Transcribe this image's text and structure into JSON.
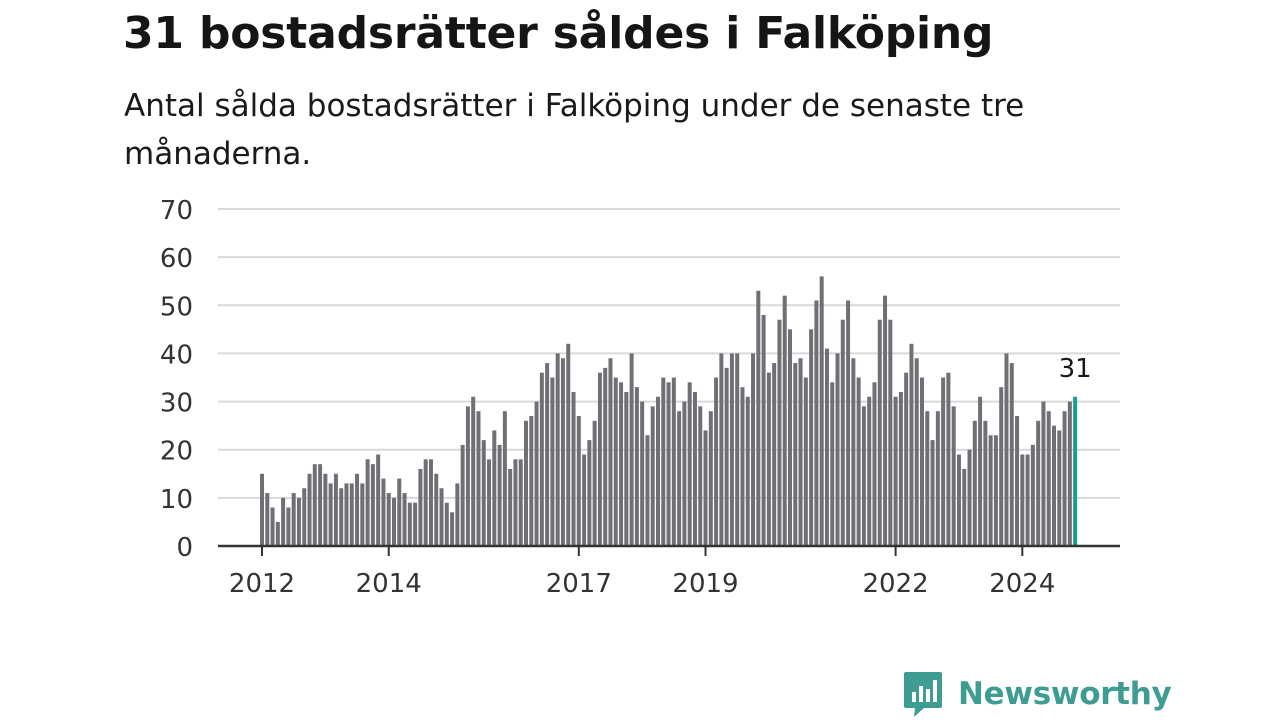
{
  "header": {
    "title": "31 bostadsrätter såldes i Falköping",
    "subtitle": "Antal sålda bostadsrätter i Falköping under de senaste tre månaderna."
  },
  "brand": {
    "name": "Newsworthy",
    "color": "#3e9c92"
  },
  "colors": {
    "bar": "#6f6f75",
    "highlight": "#1a9e96",
    "grid": "#d9d9d9",
    "axis": "#333333"
  },
  "chart_data": {
    "type": "bar",
    "x_ticks": [
      "2012",
      "2014",
      "2017",
      "2019",
      "2022",
      "2024"
    ],
    "y_ticks": [
      0,
      10,
      20,
      30,
      40,
      50,
      60,
      70
    ],
    "ylim": [
      0,
      70
    ],
    "grid": true,
    "highlight_label": "31",
    "values": [
      15,
      11,
      8,
      5,
      10,
      8,
      11,
      10,
      12,
      15,
      17,
      17,
      15,
      13,
      15,
      12,
      13,
      13,
      15,
      13,
      18,
      17,
      19,
      14,
      11,
      10,
      14,
      11,
      9,
      9,
      16,
      18,
      18,
      15,
      12,
      9,
      7,
      13,
      21,
      29,
      31,
      28,
      22,
      18,
      24,
      21,
      28,
      16,
      18,
      18,
      26,
      27,
      30,
      36,
      38,
      35,
      40,
      39,
      42,
      32,
      27,
      19,
      22,
      26,
      36,
      37,
      39,
      35,
      34,
      32,
      40,
      33,
      30,
      23,
      29,
      31,
      35,
      34,
      35,
      28,
      30,
      34,
      32,
      29,
      24,
      28,
      35,
      40,
      37,
      40,
      40,
      33,
      31,
      40,
      53,
      48,
      36,
      38,
      47,
      52,
      45,
      38,
      39,
      35,
      45,
      51,
      56,
      41,
      34,
      40,
      47,
      51,
      39,
      35,
      29,
      31,
      34,
      47,
      52,
      47,
      31,
      32,
      36,
      42,
      39,
      35,
      28,
      22,
      28,
      35,
      36,
      29,
      19,
      16,
      20,
      26,
      31,
      26,
      23,
      23,
      33,
      40,
      38,
      27,
      19,
      19,
      21,
      26,
      30,
      28,
      25,
      24,
      28,
      30,
      31
    ]
  }
}
